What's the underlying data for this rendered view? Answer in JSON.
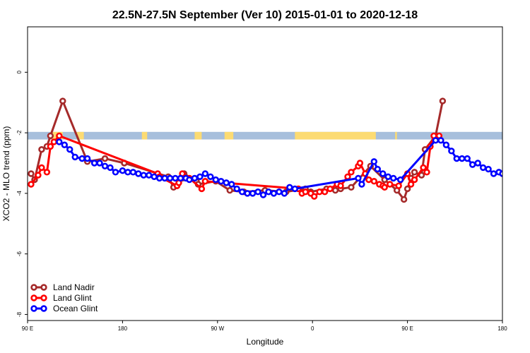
{
  "chart_data": {
    "type": "line",
    "title": "22.5N-27.5N September (Ver 10)   2015-01-01 to 2020-12-18",
    "xlabel": "Longitude",
    "ylabel": "XCO2 - MLO trend (ppm)",
    "xlim": [
      -90,
      180
    ],
    "ylim": [
      -8.2,
      1.5
    ],
    "x_ticks": [
      {
        "value": -90,
        "label": "90 E"
      },
      {
        "value": -36,
        "label": "180"
      },
      {
        "value": 18,
        "label": "90 W"
      },
      {
        "value": 72,
        "label": "0"
      },
      {
        "value": 126,
        "label": "90 E"
      },
      {
        "value": 180,
        "label": "180"
      }
    ],
    "y_ticks": [
      {
        "value": 0,
        "label": "0"
      },
      {
        "value": -2,
        "label": "-2"
      },
      {
        "value": -4,
        "label": "-4"
      },
      {
        "value": -6,
        "label": "-6"
      },
      {
        "value": -8,
        "label": "-8"
      }
    ],
    "land_band": {
      "ymin": -2.22,
      "ymax": -1.97,
      "ocean_color": "#A7BFDC",
      "land_color": "#FCDB72",
      "land_segments": [
        [
          -76,
          -70
        ],
        [
          -62,
          -58
        ],
        [
          -25,
          -22
        ],
        [
          5,
          9
        ],
        [
          22,
          27
        ],
        [
          62,
          108
        ],
        [
          119,
          120
        ]
      ]
    },
    "legend_position": "bottom-left",
    "series": [
      {
        "name": "Land Nadir",
        "color": "#A52A2A",
        "points": [
          [
            -88,
            -3.35
          ],
          [
            -86,
            -3.55
          ],
          [
            -82,
            -2.55
          ],
          [
            -79,
            -2.45
          ],
          [
            -77,
            -2.1
          ],
          [
            -70,
            -0.95
          ],
          [
            -56,
            -2.95
          ],
          [
            -46,
            -2.85
          ],
          [
            -35,
            -3.0
          ],
          [
            -10,
            -3.45
          ],
          [
            -7,
            -3.8
          ],
          [
            -5,
            -3.75
          ],
          [
            -2,
            -3.5
          ],
          [
            -1,
            -3.35
          ],
          [
            6,
            -3.6
          ],
          [
            7,
            -3.7
          ],
          [
            17,
            -3.6
          ],
          [
            25,
            -3.9
          ],
          [
            33,
            -3.95
          ],
          [
            45,
            -3.9
          ],
          [
            57,
            -3.95
          ],
          [
            68,
            -3.85
          ],
          [
            71,
            -3.95
          ],
          [
            80,
            -3.85
          ],
          [
            85,
            -3.9
          ],
          [
            88,
            -3.85
          ],
          [
            94,
            -3.8
          ],
          [
            105,
            -3.1
          ],
          [
            113,
            -3.55
          ],
          [
            120,
            -3.9
          ],
          [
            124,
            -4.2
          ],
          [
            126,
            -3.85
          ],
          [
            128,
            -3.5
          ],
          [
            130,
            -3.3
          ],
          [
            134,
            -3.4
          ],
          [
            136,
            -2.55
          ],
          [
            142,
            -2.1
          ],
          [
            146,
            -0.95
          ]
        ]
      },
      {
        "name": "Land Glint",
        "color": "#FF0000",
        "points": [
          [
            -88,
            -3.7
          ],
          [
            -84,
            -3.4
          ],
          [
            -82,
            -3.15
          ],
          [
            -79,
            -3.3
          ],
          [
            -77,
            -2.45
          ],
          [
            -75,
            -2.3
          ],
          [
            -72,
            -2.1
          ],
          [
            -16,
            -3.35
          ],
          [
            -15,
            -3.45
          ],
          [
            -5,
            -3.75
          ],
          [
            -4,
            -3.65
          ],
          [
            -2,
            -3.35
          ],
          [
            2,
            -3.5
          ],
          [
            9,
            -3.85
          ],
          [
            11,
            -3.6
          ],
          [
            64,
            -3.85
          ],
          [
            66,
            -4.0
          ],
          [
            68,
            -3.95
          ],
          [
            71,
            -4.0
          ],
          [
            73,
            -4.1
          ],
          [
            76,
            -3.95
          ],
          [
            79,
            -3.95
          ],
          [
            82,
            -3.85
          ],
          [
            86,
            -3.7
          ],
          [
            88,
            -3.75
          ],
          [
            92,
            -3.45
          ],
          [
            94,
            -3.3
          ],
          [
            98,
            -3.1
          ],
          [
            99,
            -3.0
          ],
          [
            102,
            -3.35
          ],
          [
            104,
            -3.55
          ],
          [
            107,
            -3.6
          ],
          [
            110,
            -3.7
          ],
          [
            112,
            -3.75
          ],
          [
            113,
            -3.8
          ],
          [
            116,
            -3.7
          ],
          [
            121,
            -3.75
          ],
          [
            126,
            -3.35
          ],
          [
            128,
            -3.7
          ],
          [
            130,
            -3.55
          ],
          [
            135,
            -3.15
          ],
          [
            137,
            -3.3
          ],
          [
            139,
            -2.45
          ],
          [
            141,
            -2.1
          ],
          [
            144,
            -2.1
          ]
        ]
      },
      {
        "name": "Ocean Glint",
        "color": "#0000FF",
        "points": [
          [
            -72,
            -2.3
          ],
          [
            -69,
            -2.4
          ],
          [
            -66,
            -2.55
          ],
          [
            -63,
            -2.8
          ],
          [
            -59,
            -2.85
          ],
          [
            -56,
            -2.85
          ],
          [
            -52,
            -3.0
          ],
          [
            -49,
            -3.0
          ],
          [
            -46,
            -3.1
          ],
          [
            -43,
            -3.15
          ],
          [
            -40,
            -3.3
          ],
          [
            -36,
            -3.25
          ],
          [
            -33,
            -3.3
          ],
          [
            -30,
            -3.3
          ],
          [
            -27,
            -3.35
          ],
          [
            -24,
            -3.4
          ],
          [
            -21,
            -3.4
          ],
          [
            -18,
            -3.45
          ],
          [
            -15,
            -3.5
          ],
          [
            -12,
            -3.5
          ],
          [
            -9,
            -3.5
          ],
          [
            -6,
            -3.5
          ],
          [
            -3,
            -3.5
          ],
          [
            0,
            -3.5
          ],
          [
            2,
            -3.55
          ],
          [
            5,
            -3.5
          ],
          [
            8,
            -3.45
          ],
          [
            11,
            -3.35
          ],
          [
            14,
            -3.45
          ],
          [
            17,
            -3.55
          ],
          [
            20,
            -3.6
          ],
          [
            23,
            -3.65
          ],
          [
            26,
            -3.7
          ],
          [
            29,
            -3.85
          ],
          [
            32,
            -3.95
          ],
          [
            35,
            -4.0
          ],
          [
            38,
            -4.0
          ],
          [
            41,
            -3.95
          ],
          [
            44,
            -4.05
          ],
          [
            47,
            -3.95
          ],
          [
            50,
            -4.0
          ],
          [
            53,
            -3.95
          ],
          [
            56,
            -4.0
          ],
          [
            59,
            -3.8
          ],
          [
            62,
            -3.85
          ],
          [
            98,
            -3.5
          ],
          [
            100,
            -3.7
          ],
          [
            107,
            -2.95
          ],
          [
            109,
            -3.2
          ],
          [
            112,
            -3.35
          ],
          [
            115,
            -3.45
          ],
          [
            118,
            -3.5
          ],
          [
            122,
            -3.55
          ],
          [
            142,
            -2.25
          ],
          [
            145,
            -2.25
          ],
          [
            148,
            -2.4
          ],
          [
            151,
            -2.6
          ],
          [
            154,
            -2.85
          ],
          [
            157,
            -2.85
          ],
          [
            160,
            -2.85
          ],
          [
            163,
            -3.05
          ],
          [
            166,
            -3.0
          ],
          [
            169,
            -3.15
          ],
          [
            172,
            -3.2
          ],
          [
            175,
            -3.35
          ],
          [
            178,
            -3.3
          ],
          [
            180,
            -3.35
          ]
        ]
      }
    ]
  }
}
